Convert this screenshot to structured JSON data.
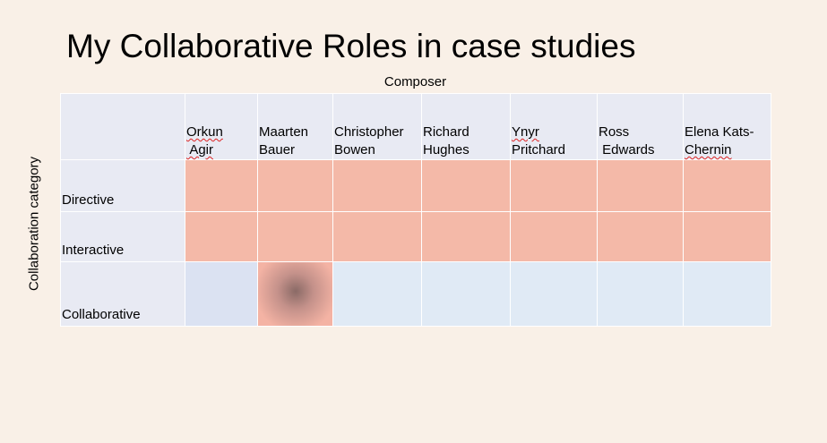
{
  "slide": {
    "title": "My Collaborative Roles in case studies",
    "x_axis_label": "Composer",
    "y_axis_label": "Collaboration category"
  },
  "table": {
    "composers": [
      {
        "first": "Orkun",
        "last": " Agir"
      },
      {
        "first": "Maarten",
        "last": "Bauer"
      },
      {
        "first": "Christopher",
        "last": "Bowen"
      },
      {
        "first": "Richard",
        "last": "Hughes"
      },
      {
        "first": "Ynyr",
        "last": "Pritchard"
      },
      {
        "first": "Ross",
        "last": " Edwards"
      },
      {
        "first": "Elena Kats-",
        "last": "Chernin"
      }
    ],
    "categories": [
      "Directive",
      "Interactive",
      "Collaborative"
    ],
    "colors": {
      "header": "#e8eaf3",
      "active": "#f4b9a8",
      "inactive": "#e0eaf5",
      "highlight_center": "#8a6a66"
    }
  }
}
